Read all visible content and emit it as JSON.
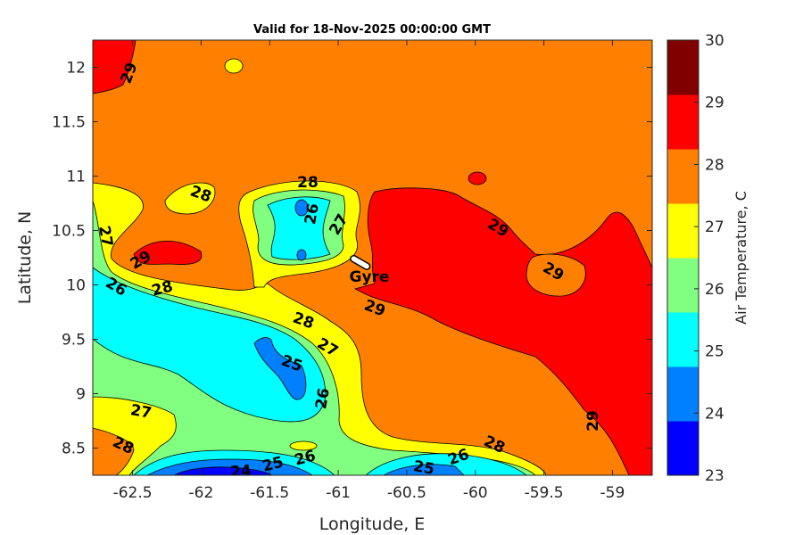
{
  "chart_data": {
    "type": "contour",
    "title": "Valid for 18-Nov-2025 00:00:00 GMT",
    "xlabel": "Longitude, E",
    "ylabel": "Latitude, N",
    "xlim": [
      -62.79,
      -58.71
    ],
    "ylim": [
      8.25,
      12.25
    ],
    "xticks": [
      -62.5,
      -62,
      -61.5,
      -61,
      -60.5,
      -60,
      -59.5,
      -59
    ],
    "xtick_labels": [
      "-62.5",
      "-62",
      "-61.5",
      "-61",
      "-60.5",
      "-60",
      "-59.5",
      "-59"
    ],
    "yticks": [
      8.5,
      9,
      9.5,
      10,
      10.5,
      11,
      11.5,
      12
    ],
    "ytick_labels": [
      "8.5",
      "9",
      "9.5",
      "10",
      "10.5",
      "11",
      "11.5",
      "12"
    ],
    "colorbar": {
      "label": "Air Temperature, C",
      "range": [
        23,
        30
      ],
      "ticks": [
        "23",
        "24",
        "25",
        "26",
        "27",
        "28",
        "29",
        "30"
      ],
      "colors": [
        "#0000ff",
        "#0080ff",
        "#00ffff",
        "#80ff80",
        "#ffff00",
        "#ff8000",
        "#ff0000",
        "#800000"
      ]
    },
    "contour_labels": [
      "29",
      "28",
      "28",
      "26",
      "27",
      "27",
      "29",
      "26",
      "28",
      "28",
      "27",
      "29",
      "29",
      "29",
      "25",
      "26",
      "27",
      "28",
      "26",
      "25",
      "24",
      "25",
      "26",
      "28",
      "29"
    ],
    "annotation": {
      "label": "Gyre",
      "lon": -60.85,
      "lat": 10.2
    }
  }
}
